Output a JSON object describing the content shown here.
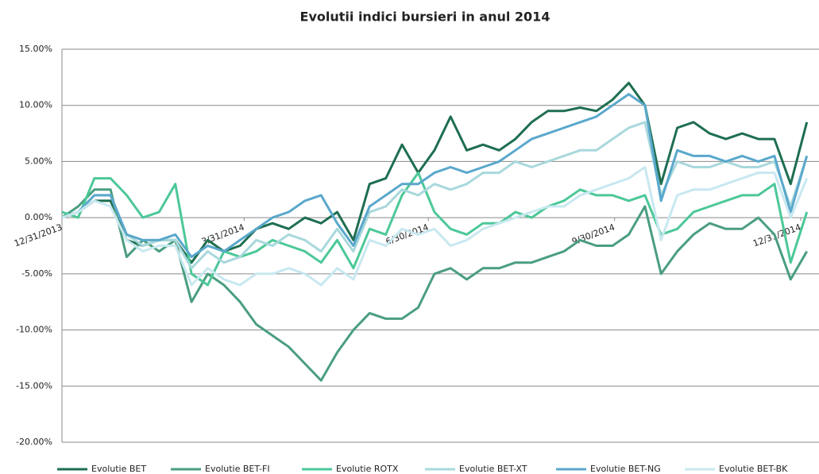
{
  "chart_data": {
    "type": "line",
    "title": "Evolutii indici bursieri in anul 2014",
    "x": [
      "12/31/2013",
      "1/8/2014",
      "1/16/2014",
      "1/24/2014",
      "2/1/2014",
      "2/9/2014",
      "2/17/2014",
      "2/25/2014",
      "3/5/2014",
      "3/13/2014",
      "3/21/2014",
      "3/29/2014",
      "4/6/2014",
      "4/14/2014",
      "4/22/2014",
      "4/30/2014",
      "5/8/2014",
      "5/16/2014",
      "5/24/2014",
      "6/1/2014",
      "6/9/2014",
      "6/17/2014",
      "6/25/2014",
      "7/3/2014",
      "7/11/2014",
      "7/19/2014",
      "7/27/2014",
      "8/4/2014",
      "8/12/2014",
      "8/20/2014",
      "8/28/2014",
      "9/5/2014",
      "9/13/2014",
      "9/21/2014",
      "9/29/2014",
      "10/7/2014",
      "10/15/2014",
      "10/23/2014",
      "10/31/2014",
      "11/8/2014",
      "11/16/2014",
      "11/24/2014",
      "12/2/2014",
      "12/10/2014",
      "12/18/2014",
      "12/26/2014",
      "1/3/2015"
    ],
    "series": [
      {
        "name": "Evolutie BET",
        "color": "#1e6e50",
        "values": [
          0,
          0.5,
          1.5,
          1.5,
          -2,
          -2.5,
          -2,
          -2,
          -4,
          -2,
          -3,
          -2.5,
          -1,
          -0.5,
          -1,
          0,
          -0.5,
          0.5,
          -2,
          3,
          3.5,
          6.5,
          4,
          6,
          9,
          6,
          6.5,
          6,
          7,
          8.5,
          9.5,
          9.5,
          9.8,
          9.5,
          10.5,
          12,
          10,
          3,
          8,
          8.5,
          7.5,
          7,
          7.5,
          7,
          7,
          3,
          8.5
        ]
      },
      {
        "name": "Evolutie BET-FI",
        "color": "#4a9e80",
        "values": [
          0,
          1,
          2.5,
          2.5,
          -3.5,
          -2,
          -3,
          -2,
          -7.5,
          -5,
          -6,
          -7.5,
          -9.5,
          -10.5,
          -11.5,
          -13,
          -14.5,
          -12,
          -10,
          -8.5,
          -9,
          -9,
          -8,
          -5,
          -4.5,
          -5.5,
          -4.5,
          -4.5,
          -4,
          -4,
          -3.5,
          -3,
          -2,
          -2.5,
          -2.5,
          -1.5,
          1,
          -5,
          -3,
          -1.5,
          -0.5,
          -1,
          -1,
          0,
          -1.5,
          -5.5,
          -3
        ]
      },
      {
        "name": "Evolutie ROTX",
        "color": "#4cc898",
        "values": [
          0.5,
          0,
          3.5,
          3.5,
          2,
          0,
          0.5,
          3,
          -5,
          -6,
          -3,
          -3.5,
          -3,
          -2,
          -2.5,
          -3,
          -4,
          -2,
          -4.5,
          -1,
          -1.5,
          2,
          4,
          0.5,
          -1,
          -1.5,
          -0.5,
          -0.5,
          0.5,
          0,
          1,
          1.5,
          2.5,
          2,
          2,
          1.5,
          2,
          -1.5,
          -1,
          0.5,
          1,
          1.5,
          2,
          2,
          3,
          -4,
          0.5
        ]
      },
      {
        "name": "Evolutie BET-XT",
        "color": "#a8d8dc",
        "values": [
          0,
          0.5,
          2,
          2,
          -1.5,
          -2.5,
          -2,
          -2,
          -4.5,
          -3,
          -4,
          -3.5,
          -2,
          -2.5,
          -1.5,
          -2,
          -3,
          -1,
          -3,
          0.5,
          1,
          2.5,
          2,
          3,
          2.5,
          3,
          4,
          4,
          5,
          4.5,
          5,
          5.5,
          6,
          6,
          7,
          8,
          8.5,
          2,
          5,
          4.5,
          4.5,
          5,
          4.5,
          4.5,
          5,
          1,
          5.5
        ]
      },
      {
        "name": "Evolutie BET-NG",
        "color": "#5aa8cc",
        "values": [
          0,
          0.5,
          2,
          2,
          -1.5,
          -2,
          -2,
          -1.5,
          -3.5,
          -2.5,
          -3,
          -2,
          -1,
          0,
          0.5,
          1.5,
          2,
          -0.5,
          -2.5,
          1,
          2,
          3,
          3,
          4,
          4.5,
          4,
          4.5,
          5,
          6,
          7,
          7.5,
          8,
          8.5,
          9,
          10,
          11,
          10,
          1.5,
          6,
          5.5,
          5.5,
          5,
          5.5,
          5,
          5.5,
          0.5,
          5.5
        ]
      },
      {
        "name": "Evolutie BET-BK",
        "color": "#c8e8f0",
        "values": [
          0,
          0.5,
          1.5,
          1,
          -2,
          -3,
          -2.5,
          -2.5,
          -6,
          -4.5,
          -5.5,
          -6,
          -5,
          -5,
          -4.5,
          -5,
          -6,
          -4.5,
          -5.5,
          -2,
          -2.5,
          -1,
          -1.5,
          -1,
          -2.5,
          -2,
          -1,
          -0.5,
          0,
          0.5,
          1,
          1,
          2,
          2.5,
          3,
          3.5,
          4.5,
          -2,
          2,
          2.5,
          2.5,
          3,
          3.5,
          4,
          4,
          0,
          3.5
        ]
      }
    ],
    "xlim": [
      "12/31/2013",
      "1/9/2015"
    ],
    "xticks": [
      "12/31/2013",
      "3/31/2014",
      "6/30/2014",
      "9/30/2014",
      "12/31/2014"
    ],
    "ylim": [
      -20,
      15
    ],
    "yticks": [
      {
        "value": -20,
        "label": "-20.00%"
      },
      {
        "value": -15,
        "label": "-15.00%"
      },
      {
        "value": -10,
        "label": "-10.00%"
      },
      {
        "value": -5,
        "label": "-5.00%"
      },
      {
        "value": 0,
        "label": "0.00%"
      },
      {
        "value": 5,
        "label": "5.00%"
      },
      {
        "value": 10,
        "label": "10.00%"
      },
      {
        "value": 15,
        "label": "15.00%"
      }
    ],
    "grid": true,
    "legend": "bottom"
  }
}
